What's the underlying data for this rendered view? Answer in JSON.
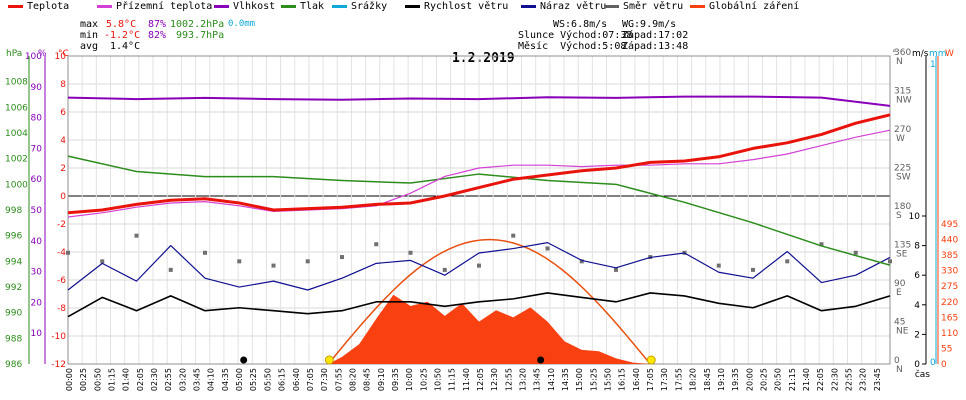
{
  "legend": [
    {
      "label": "Teplota",
      "color": "#e8140c"
    },
    {
      "label": "Přízemní teplota",
      "color": "#d440d4"
    },
    {
      "label": "Vlhkost",
      "color": "#8800b8"
    },
    {
      "label": "Tlak",
      "color": "#2c8c1c"
    },
    {
      "label": "Srážky",
      "color": "#10a8d8"
    },
    {
      "label": "Rychlost větru",
      "color": "#000000"
    },
    {
      "label": "Náraz větru",
      "color": "#101090"
    },
    {
      "label": "Směr větru",
      "color": "#606060"
    },
    {
      "label": "Globální záření",
      "color": "#f84010"
    }
  ],
  "stats": {
    "max_label": "max",
    "max_temp": "5.8°C",
    "max_hum": "87%",
    "max_press": "1002.2hPa",
    "max_rain": "0.0mm",
    "min_label": "min",
    "min_temp": "-1.2°C",
    "min_hum": "82%",
    "min_press": "993.7hPa",
    "avg_label": "avg",
    "avg_temp": "1.4°C",
    "ws": "WS:6.8m/s",
    "wg": "WG:9.9m/s",
    "slunce": "Slunce Východ:07:38",
    "slunce_z": "Západ:17:02",
    "mesic": "Měsíc  Východ:5:08",
    "mesic_z": "Západ:13:48"
  },
  "chart_data": {
    "type": "line",
    "title": "1.2.2019",
    "x_unit_label": "čas",
    "axis_units": {
      "pressure": "hPa",
      "humidity": "%",
      "temperature": "°C",
      "direction": "°",
      "wind": "m/s",
      "rain": "mm",
      "radiation": "W"
    },
    "x_ticks": [
      "00:00",
      "00:25",
      "00:50",
      "01:15",
      "01:40",
      "02:05",
      "02:30",
      "02:55",
      "03:20",
      "03:45",
      "04:10",
      "04:35",
      "05:00",
      "05:25",
      "05:50",
      "06:15",
      "06:40",
      "07:05",
      "07:30",
      "07:55",
      "08:20",
      "08:45",
      "09:10",
      "09:35",
      "10:00",
      "10:25",
      "10:50",
      "11:15",
      "11:40",
      "12:05",
      "12:30",
      "12:55",
      "13:20",
      "13:45",
      "14:10",
      "14:35",
      "15:00",
      "15:25",
      "15:50",
      "16:15",
      "16:40",
      "17:05",
      "17:30",
      "17:55",
      "18:20",
      "18:45",
      "19:10",
      "19:35",
      "20:00",
      "20:25",
      "20:50",
      "21:15",
      "21:40",
      "22:05",
      "22:30",
      "22:55",
      "23:20",
      "23:45"
    ],
    "pressure_ticks": [
      986,
      988,
      990,
      992,
      994,
      996,
      998,
      1000,
      1002,
      1004,
      1006,
      1008
    ],
    "humidity_ticks": [
      10,
      20,
      30,
      40,
      50,
      60,
      70,
      80,
      90,
      100
    ],
    "temp_ticks": [
      -12,
      -10,
      -8,
      -6,
      -4,
      -2,
      0,
      2,
      4,
      6,
      8,
      10
    ],
    "direction_ticks": [
      {
        "deg": 0,
        "label": "N"
      },
      {
        "deg": 45,
        "label": "NE"
      },
      {
        "deg": 90,
        "label": "E"
      },
      {
        "deg": 135,
        "label": "SE"
      },
      {
        "deg": 180,
        "label": "S"
      },
      {
        "deg": 225,
        "label": "SW"
      },
      {
        "deg": 270,
        "label": "W"
      },
      {
        "deg": 315,
        "label": "NW"
      },
      {
        "deg": 360,
        "label": "N"
      }
    ],
    "wind_ticks": [
      0,
      2,
      4,
      6,
      8,
      10
    ],
    "rain_ticks": [
      0,
      1
    ],
    "radiation_ticks": [
      0,
      55,
      110,
      165,
      220,
      275,
      330,
      385,
      440,
      495
    ],
    "ylim_pressure": [
      986,
      1010
    ],
    "ylim_humidity": [
      0,
      100
    ],
    "ylim_temp": [
      -12,
      10
    ],
    "ylim_direction": [
      0,
      360
    ],
    "ylim_wind": [
      0,
      10
    ],
    "ylim_radiation": [
      0,
      495
    ],
    "series": [
      {
        "name": "Teplota",
        "key": "temp",
        "color": "#e8140c",
        "x": [
          0,
          1,
          2,
          3,
          4,
          5,
          6,
          7,
          8,
          9,
          10,
          11,
          12,
          13,
          14,
          15,
          16,
          17,
          18,
          19,
          20,
          21,
          22,
          23,
          24
        ],
        "values": [
          -1.2,
          -1.0,
          -0.6,
          -0.3,
          -0.2,
          -0.5,
          -1.0,
          -0.9,
          -0.8,
          -0.6,
          -0.5,
          0.0,
          0.6,
          1.2,
          1.5,
          1.8,
          2.0,
          2.4,
          2.5,
          2.8,
          3.4,
          3.8,
          4.4,
          5.2,
          5.8
        ]
      },
      {
        "name": "Přízemní teplota",
        "key": "ground_temp",
        "color": "#d440d4",
        "x": [
          0,
          1,
          2,
          3,
          4,
          5,
          6,
          7,
          8,
          9,
          10,
          11,
          12,
          13,
          14,
          15,
          16,
          17,
          18,
          19,
          20,
          21,
          22,
          23,
          24
        ],
        "values": [
          -1.5,
          -1.2,
          -0.8,
          -0.5,
          -0.4,
          -0.7,
          -1.1,
          -1.0,
          -0.9,
          -0.7,
          0.2,
          1.4,
          2.0,
          2.2,
          2.2,
          2.1,
          2.2,
          2.2,
          2.3,
          2.3,
          2.6,
          3.0,
          3.6,
          4.2,
          4.7
        ]
      },
      {
        "name": "Vlhkost",
        "key": "humidity",
        "color": "#8800b8",
        "x": [
          0,
          2,
          4,
          6,
          8,
          10,
          12,
          14,
          16,
          18,
          20,
          22,
          24
        ],
        "values": [
          86.5,
          86.0,
          86.4,
          86.0,
          85.8,
          86.2,
          86.0,
          86.6,
          86.4,
          86.8,
          86.8,
          86.5,
          83.8
        ]
      },
      {
        "name": "Tlak",
        "key": "pressure",
        "color": "#2c8c1c",
        "x": [
          0,
          2,
          4,
          6,
          8,
          10,
          12,
          14,
          16,
          18,
          20,
          22,
          24
        ],
        "values": [
          1002.2,
          1001.0,
          1000.6,
          1000.6,
          1000.3,
          1000.1,
          1000.8,
          1000.3,
          1000.0,
          998.6,
          997.0,
          995.2,
          993.7
        ]
      },
      {
        "name": "Rychlost větru",
        "key": "wind",
        "color": "#000000",
        "x": [
          0,
          1,
          2,
          3,
          4,
          5,
          6,
          7,
          8,
          9,
          10,
          11,
          12,
          13,
          14,
          15,
          16,
          17,
          18,
          19,
          20,
          21,
          22,
          23,
          24
        ],
        "values": [
          3.2,
          4.5,
          3.6,
          4.6,
          3.6,
          3.8,
          3.6,
          3.4,
          3.6,
          4.2,
          4.2,
          3.9,
          4.2,
          4.4,
          4.8,
          4.5,
          4.2,
          4.8,
          4.6,
          4.1,
          3.8,
          4.6,
          3.6,
          3.9,
          4.6
        ]
      },
      {
        "name": "Náraz větru",
        "key": "gust",
        "color": "#101090",
        "x": [
          0,
          1,
          2,
          3,
          4,
          5,
          6,
          7,
          8,
          9,
          10,
          11,
          12,
          13,
          14,
          15,
          16,
          17,
          18,
          19,
          20,
          21,
          22,
          23,
          24
        ],
        "values": [
          5.0,
          6.8,
          5.6,
          8.0,
          5.8,
          5.2,
          5.6,
          5.0,
          5.8,
          6.8,
          7.0,
          6.0,
          7.5,
          7.8,
          8.2,
          7.0,
          6.5,
          7.2,
          7.5,
          6.2,
          5.8,
          7.6,
          5.5,
          6.0,
          7.2
        ]
      },
      {
        "name": "Směr větru",
        "key": "direction",
        "color": "#606060",
        "x": [
          0,
          1,
          2,
          3,
          4,
          5,
          6,
          7,
          8,
          9,
          10,
          11,
          12,
          13,
          14,
          15,
          16,
          17,
          18,
          19,
          20,
          21,
          22,
          23,
          24
        ],
        "values": [
          130,
          120,
          150,
          110,
          130,
          120,
          115,
          120,
          125,
          140,
          130,
          110,
          115,
          150,
          135,
          120,
          110,
          125,
          130,
          115,
          110,
          120,
          140,
          130,
          120
        ]
      },
      {
        "name": "Globální záření",
        "key": "radiation",
        "color": "#f84010",
        "x": [
          7.6,
          8,
          8.5,
          9,
          9.5,
          10,
          10.5,
          11,
          11.5,
          12,
          12.5,
          13,
          13.5,
          14,
          14.5,
          15,
          15.5,
          16,
          16.5,
          17
        ],
        "values": [
          0,
          25,
          70,
          160,
          245,
          205,
          220,
          170,
          215,
          150,
          190,
          165,
          200,
          150,
          80,
          50,
          45,
          20,
          5,
          0
        ]
      }
    ],
    "rain_total": 0.0,
    "sun_rise": "07:38",
    "sun_set": "17:02",
    "moon_rise": "5:08",
    "moon_set": "13:48",
    "max_radiation_curve_peak": 440
  }
}
